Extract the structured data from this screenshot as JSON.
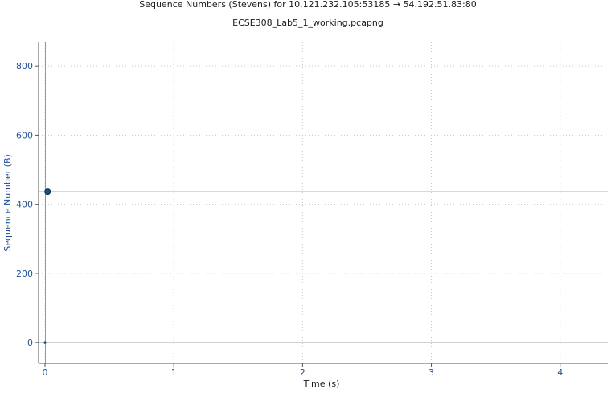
{
  "chart_data": {
    "type": "scatter",
    "title": "Sequence Numbers (Stevens) for 10.121.232.105:53185 → 54.192.51.83:80",
    "subtitle": "ECSE308_Lab5_1_working.pcapng",
    "xlabel": "Time (s)",
    "ylabel": "Sequence Number (B)",
    "xlim": [
      -0.05,
      4.37
    ],
    "ylim": [
      -60,
      870
    ],
    "x_ticks": [
      0,
      1,
      2,
      3,
      4
    ],
    "x_tick_labels": [
      "0",
      "1",
      "2",
      "3",
      "4"
    ],
    "y_ticks": [
      0,
      200,
      400,
      600,
      800
    ],
    "y_tick_labels": [
      "0",
      "200",
      "400",
      "600",
      "800"
    ],
    "grid": true,
    "cursor": {
      "x": 0.0,
      "y": 436,
      "horizontal_line": true,
      "vertical_line": true
    },
    "series": [
      {
        "name": "Sequence Numbers",
        "color": "#1f4e79",
        "points": [
          {
            "x": 0.0,
            "y": 0
          },
          {
            "x": 0.02,
            "y": 436
          }
        ]
      }
    ]
  }
}
